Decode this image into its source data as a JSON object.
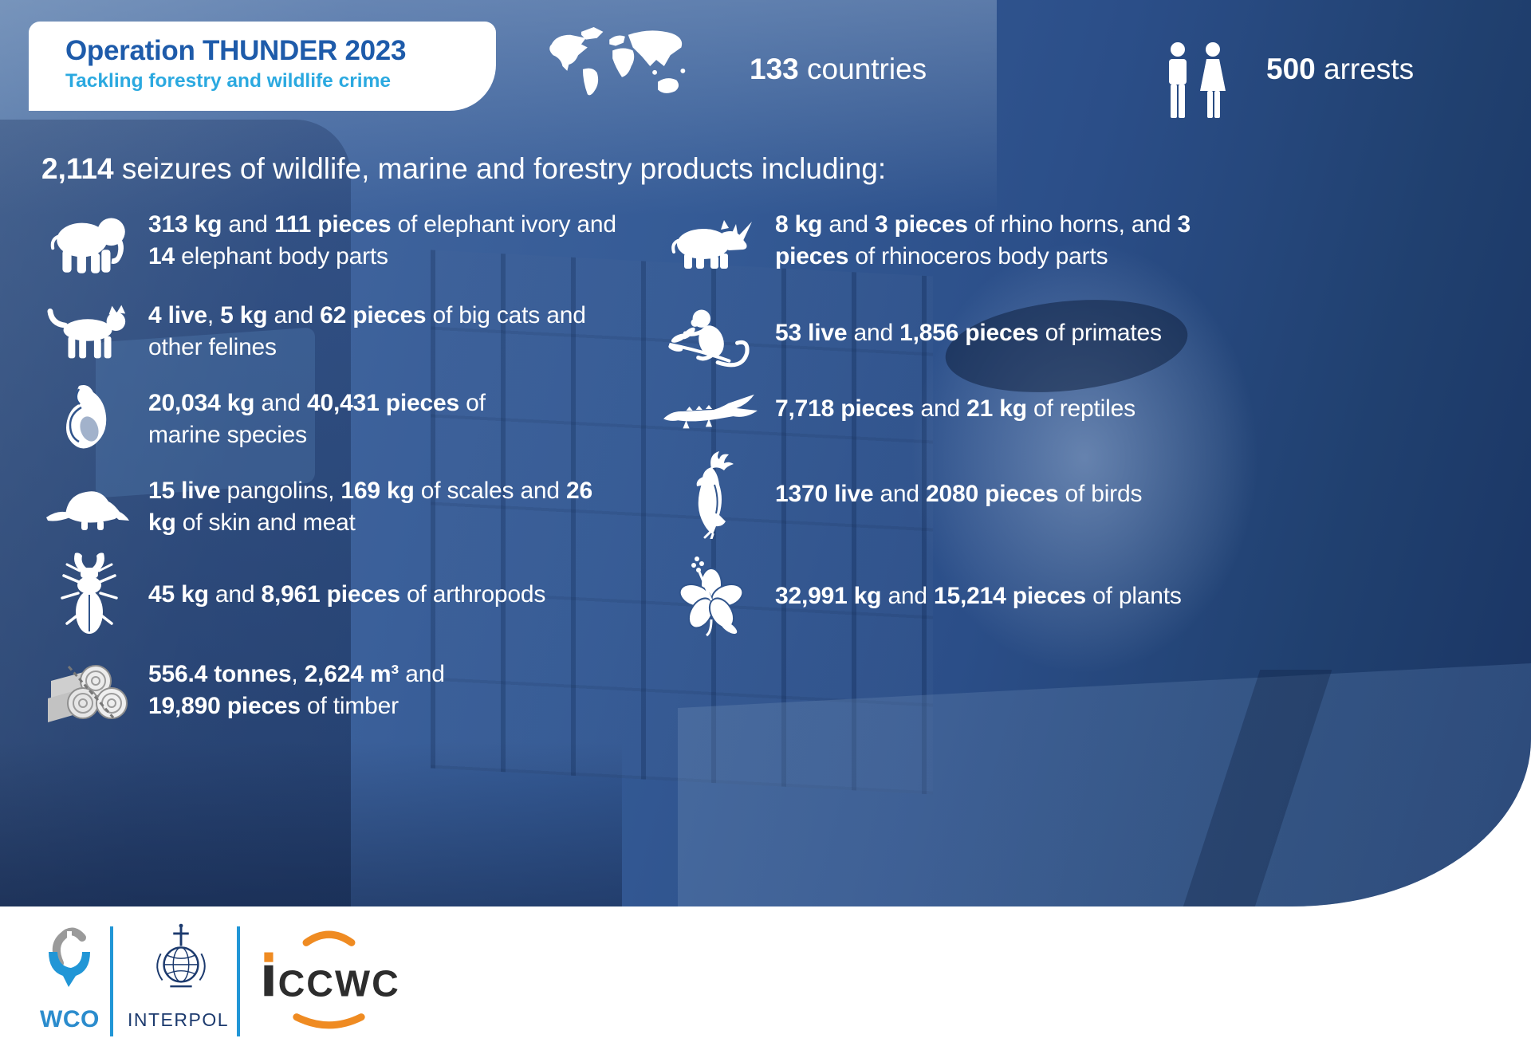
{
  "colors": {
    "title_blue": "#1e5baa",
    "subtitle_blue": "#2ba9e0",
    "panel_blue": "#30548c",
    "text_white": "#ffffff",
    "footer_divider_blue": "#2196d6",
    "wco_blue": "#2b8ccd",
    "interpol_navy": "#1c3a6e",
    "iccwc_orange": "#ef8b22",
    "iccwc_dark": "#2d2d2d"
  },
  "title_card": {
    "title": "Operation THUNDER 2023",
    "subtitle": "Tackling forestry and wildlife crime"
  },
  "header_stats": [
    {
      "icon": "world-map-icon",
      "value": "133",
      "label": " countries"
    },
    {
      "icon": "man-woman-icon",
      "value": "500",
      "label": " arrests"
    }
  ],
  "intro": {
    "segments": [
      {
        "t": "2,114",
        "b": true
      },
      {
        "t": " seizures of wildlife, marine and forestry products including:",
        "b": false
      }
    ]
  },
  "items_left": [
    {
      "icon": "elephant-icon",
      "segments": [
        {
          "t": "313 kg",
          "b": true
        },
        {
          "t": " and ",
          "b": false
        },
        {
          "t": "111 pieces",
          "b": true
        },
        {
          "t": " of elephant ivory and ",
          "b": false
        },
        {
          "t": "14",
          "b": true
        },
        {
          "t": " elephant body parts",
          "b": false
        }
      ]
    },
    {
      "icon": "big-cat-icon",
      "segments": [
        {
          "t": "4 live",
          "b": true
        },
        {
          "t": ", ",
          "b": false
        },
        {
          "t": "5 kg",
          "b": true
        },
        {
          "t": " and ",
          "b": false
        },
        {
          "t": "62 pieces",
          "b": true
        },
        {
          "t": " of big cats and other felines",
          "b": false
        }
      ]
    },
    {
      "icon": "shell-icon",
      "segments": [
        {
          "t": "20,034 kg",
          "b": true
        },
        {
          "t": " and ",
          "b": false
        },
        {
          "t": "40,431 pieces",
          "b": true
        },
        {
          "t": " of marine species",
          "b": false
        }
      ]
    },
    {
      "icon": "pangolin-icon",
      "segments": [
        {
          "t": "15 live",
          "b": true
        },
        {
          "t": " pangolins, ",
          "b": false
        },
        {
          "t": "169 kg",
          "b": true
        },
        {
          "t": " of scales and ",
          "b": false
        },
        {
          "t": "26 kg",
          "b": true
        },
        {
          "t": " of skin and meat",
          "b": false
        }
      ]
    },
    {
      "icon": "beetle-icon",
      "segments": [
        {
          "t": "45 kg",
          "b": true
        },
        {
          "t": " and ",
          "b": false
        },
        {
          "t": "8,961 pieces",
          "b": true
        },
        {
          "t": " of arthropods",
          "b": false
        }
      ]
    },
    {
      "icon": "timber-icon",
      "segments": [
        {
          "t": "556.4 tonnes",
          "b": true
        },
        {
          "t": ", ",
          "b": false
        },
        {
          "t": "2,624 m³",
          "b": true
        },
        {
          "t": " and ",
          "b": false
        },
        {
          "t": "19,890 pieces",
          "b": true
        },
        {
          "t": " of timber",
          "b": false
        }
      ]
    }
  ],
  "items_right": [
    {
      "icon": "rhino-icon",
      "segments": [
        {
          "t": "8 kg",
          "b": true
        },
        {
          "t": " and ",
          "b": false
        },
        {
          "t": "3 pieces",
          "b": true
        },
        {
          "t": " of rhino horns, and ",
          "b": false
        },
        {
          "t": "3 pieces",
          "b": true
        },
        {
          "t": " of rhinoceros body parts",
          "b": false
        }
      ]
    },
    {
      "icon": "monkey-icon",
      "segments": [
        {
          "t": "53 live",
          "b": true
        },
        {
          "t": " and ",
          "b": false
        },
        {
          "t": "1,856 pieces",
          "b": true
        },
        {
          "t": " of primates",
          "b": false
        }
      ]
    },
    {
      "icon": "crocodile-icon",
      "segments": [
        {
          "t": "7,718 pieces",
          "b": true
        },
        {
          "t": " and ",
          "b": false
        },
        {
          "t": "21 kg",
          "b": true
        },
        {
          "t": " of reptiles",
          "b": false
        }
      ]
    },
    {
      "icon": "cockatoo-icon",
      "segments": [
        {
          "t": "1370 live",
          "b": true
        },
        {
          "t": " and ",
          "b": false
        },
        {
          "t": "2080 pieces",
          "b": true
        },
        {
          "t": " of birds",
          "b": false
        }
      ]
    },
    {
      "icon": "hibiscus-icon",
      "segments": [
        {
          "t": "32,991 kg",
          "b": true
        },
        {
          "t": " and ",
          "b": false
        },
        {
          "t": "15,214 pieces",
          "b": true
        },
        {
          "t": " of plants",
          "b": false
        }
      ]
    }
  ],
  "footer": {
    "wco_label": "WCO",
    "interpol_label": "INTERPOL",
    "iccwc_label": "ICCWC",
    "iccwc_rest": "CCWC"
  }
}
